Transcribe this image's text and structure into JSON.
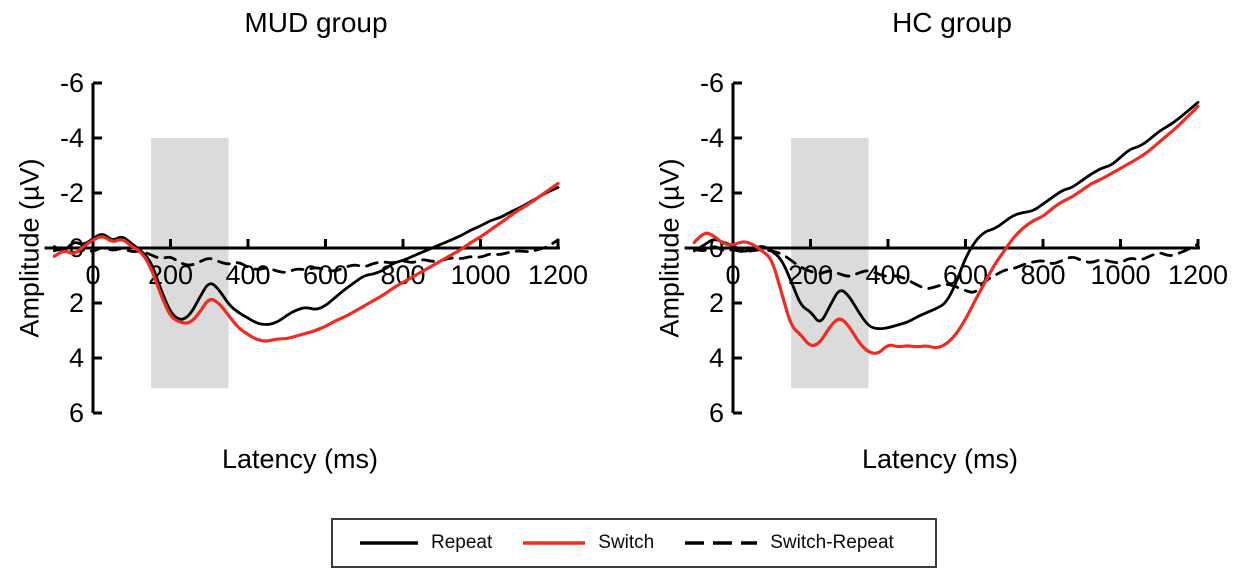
{
  "figure": {
    "background": "#ffffff"
  },
  "legend": {
    "items": [
      {
        "label": "Repeat",
        "color": "#000000",
        "style": "solid"
      },
      {
        "label": "Switch",
        "color": "#EE2C24",
        "style": "solid"
      },
      {
        "label": "Switch-Repeat",
        "color": "#000000",
        "style": "dashed"
      }
    ]
  },
  "chart_data": [
    {
      "type": "line",
      "title": "MUD group",
      "xlabel": "Latency (ms)",
      "ylabel": "Amplitude (µV)",
      "x_unit": "ms",
      "y_unit": "µV",
      "xlim": [
        -125,
        1205
      ],
      "ylim": [
        6,
        -6
      ],
      "y_axis_inverted": true,
      "grid": false,
      "x_ticks": [
        0,
        200,
        400,
        600,
        800,
        1000,
        1200
      ],
      "y_ticks": [
        -6,
        -4,
        -2,
        0,
        2,
        4,
        6
      ],
      "shaded_region": {
        "x": [
          150,
          350
        ],
        "y": [
          -4,
          5.1
        ],
        "color": "#DBDBDB"
      },
      "x": [
        -100,
        -75,
        -50,
        -25,
        0,
        25,
        50,
        75,
        100,
        125,
        150,
        175,
        200,
        225,
        250,
        275,
        300,
        325,
        350,
        375,
        400,
        425,
        450,
        475,
        500,
        525,
        550,
        575,
        600,
        625,
        650,
        675,
        700,
        725,
        750,
        775,
        800,
        825,
        850,
        875,
        900,
        925,
        950,
        975,
        1000,
        1025,
        1050,
        1075,
        1100,
        1125,
        1150,
        1175,
        1200
      ],
      "series": [
        {
          "name": "Repeat",
          "color": "#000000",
          "style": "solid",
          "values": [
            -0.05,
            0.15,
            -0.25,
            -0.1,
            -0.35,
            -0.55,
            -0.25,
            -0.45,
            -0.15,
            0.1,
            0.5,
            1.5,
            2.35,
            2.65,
            2.45,
            1.8,
            1.2,
            1.5,
            2.05,
            2.35,
            2.55,
            2.75,
            2.8,
            2.7,
            2.45,
            2.25,
            2.15,
            2.25,
            2.1,
            1.8,
            1.5,
            1.25,
            1.0,
            0.95,
            0.8,
            0.55,
            0.45,
            0.3,
            0.15,
            0.0,
            -0.15,
            -0.3,
            -0.45,
            -0.65,
            -0.8,
            -1.0,
            -1.1,
            -1.3,
            -1.45,
            -1.65,
            -1.85,
            -2.05,
            -2.2
          ]
        },
        {
          "name": "Switch",
          "color": "#EE2C24",
          "style": "solid",
          "values": [
            0.3,
            0.05,
            0.25,
            -0.05,
            -0.3,
            -0.45,
            -0.2,
            -0.35,
            -0.05,
            0.15,
            0.7,
            1.7,
            2.5,
            2.7,
            2.75,
            2.35,
            1.8,
            2.0,
            2.45,
            2.9,
            3.15,
            3.35,
            3.4,
            3.3,
            3.3,
            3.2,
            3.1,
            3.0,
            2.85,
            2.65,
            2.5,
            2.3,
            2.1,
            1.9,
            1.7,
            1.45,
            1.25,
            1.05,
            0.85,
            0.65,
            0.45,
            0.25,
            0.05,
            -0.2,
            -0.4,
            -0.65,
            -0.9,
            -1.15,
            -1.4,
            -1.6,
            -1.85,
            -2.1,
            -2.35
          ]
        },
        {
          "name": "Switch-Repeat",
          "color": "#000000",
          "style": "dashed",
          "values": [
            0.1,
            0.0,
            0.2,
            0.05,
            0.15,
            -0.05,
            0.1,
            0.0,
            0.15,
            0.1,
            0.25,
            0.4,
            0.3,
            0.55,
            0.65,
            0.5,
            0.35,
            0.5,
            0.6,
            0.5,
            0.7,
            0.8,
            0.7,
            0.85,
            0.9,
            0.75,
            0.8,
            0.7,
            0.8,
            0.85,
            0.7,
            0.6,
            0.7,
            0.55,
            0.5,
            0.55,
            0.45,
            0.55,
            0.4,
            0.5,
            0.45,
            0.35,
            0.4,
            0.3,
            0.35,
            0.2,
            0.25,
            0.15,
            0.1,
            0.15,
            0.05,
            -0.05,
            -0.3
          ]
        }
      ]
    },
    {
      "type": "line",
      "title": "HC group",
      "xlabel": "Latency (ms)",
      "ylabel": "Amplitude (µV)",
      "x_unit": "ms",
      "y_unit": "µV",
      "xlim": [
        -125,
        1205
      ],
      "ylim": [
        6,
        -6
      ],
      "y_axis_inverted": true,
      "grid": false,
      "x_ticks": [
        0,
        200,
        400,
        600,
        800,
        1000,
        1200
      ],
      "y_ticks": [
        -6,
        -4,
        -2,
        0,
        2,
        4,
        6
      ],
      "shaded_region": {
        "x": [
          150,
          350
        ],
        "y": [
          -4,
          5.1
        ],
        "color": "#DBDBDB"
      },
      "x": [
        -100,
        -75,
        -50,
        -25,
        0,
        25,
        50,
        75,
        100,
        125,
        150,
        175,
        200,
        225,
        250,
        275,
        300,
        325,
        350,
        375,
        400,
        425,
        450,
        475,
        500,
        525,
        550,
        575,
        600,
        625,
        650,
        675,
        700,
        725,
        750,
        775,
        800,
        825,
        850,
        875,
        900,
        925,
        950,
        975,
        1000,
        1025,
        1050,
        1075,
        1100,
        1125,
        1150,
        1175,
        1200
      ],
      "series": [
        {
          "name": "Repeat",
          "color": "#000000",
          "style": "solid",
          "values": [
            0.1,
            -0.1,
            -0.35,
            -0.2,
            -0.1,
            0.15,
            0.05,
            -0.1,
            0.1,
            0.4,
            1.2,
            2.1,
            2.3,
            2.8,
            2.1,
            1.45,
            1.75,
            2.35,
            2.85,
            2.95,
            2.9,
            2.8,
            2.7,
            2.5,
            2.35,
            2.2,
            2.0,
            1.3,
            0.35,
            -0.25,
            -0.6,
            -0.7,
            -0.95,
            -1.2,
            -1.3,
            -1.35,
            -1.6,
            -1.85,
            -2.1,
            -2.2,
            -2.45,
            -2.7,
            -2.9,
            -3.0,
            -3.3,
            -3.6,
            -3.7,
            -3.95,
            -4.25,
            -4.45,
            -4.7,
            -5.0,
            -5.3
          ]
        },
        {
          "name": "Switch",
          "color": "#EE2C24",
          "style": "solid",
          "values": [
            -0.2,
            -0.6,
            -0.45,
            -0.15,
            -0.1,
            -0.25,
            -0.15,
            0.1,
            0.4,
            1.6,
            2.85,
            3.15,
            3.6,
            3.45,
            2.85,
            2.5,
            2.85,
            3.45,
            3.8,
            3.85,
            3.5,
            3.6,
            3.55,
            3.6,
            3.55,
            3.65,
            3.5,
            3.15,
            2.6,
            1.9,
            1.25,
            0.6,
            0.1,
            -0.4,
            -0.75,
            -1.0,
            -1.15,
            -1.45,
            -1.7,
            -1.85,
            -2.1,
            -2.35,
            -2.5,
            -2.7,
            -2.9,
            -3.1,
            -3.3,
            -3.55,
            -3.85,
            -4.15,
            -4.45,
            -4.8,
            -5.15
          ]
        },
        {
          "name": "Switch-Repeat",
          "color": "#000000",
          "style": "dashed",
          "values": [
            0.05,
            0.15,
            -0.1,
            0.1,
            0.05,
            0.15,
            0.1,
            0.05,
            0.1,
            0.2,
            0.45,
            0.7,
            0.85,
            0.95,
            0.8,
            0.95,
            1.05,
            0.9,
            0.8,
            0.95,
            1.05,
            1.0,
            1.15,
            1.35,
            1.5,
            1.4,
            1.3,
            1.4,
            1.55,
            1.65,
            1.2,
            1.0,
            0.8,
            0.75,
            0.6,
            0.5,
            0.45,
            0.6,
            0.45,
            0.3,
            0.45,
            0.55,
            0.4,
            0.5,
            0.55,
            0.35,
            0.45,
            0.3,
            0.15,
            0.3,
            0.2,
            0.05,
            -0.15
          ]
        }
      ]
    }
  ]
}
